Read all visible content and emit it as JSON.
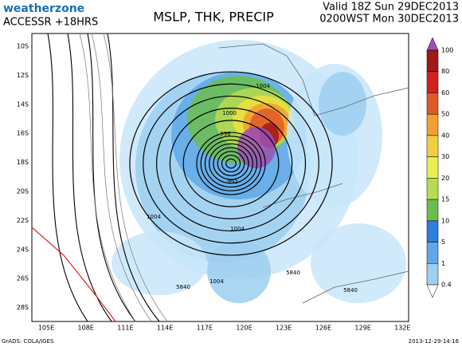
{
  "header": {
    "logo": "weatherzone",
    "model": "ACCESSR +18HRS",
    "title": "MSLP, THK, PRECIP",
    "valid_line1": "Valid 18Z Sun 29DEC2013",
    "valid_line2": "0200WST Mon 30DEC2013"
  },
  "map": {
    "lat_labels": [
      "10S",
      "12S",
      "14S",
      "16S",
      "18S",
      "20S",
      "22S",
      "24S",
      "26S",
      "28S"
    ],
    "lon_labels": [
      "105E",
      "108E",
      "111E",
      "114E",
      "117E",
      "120E",
      "123E",
      "126E",
      "129E",
      "132E"
    ],
    "contour_labels": [
      "1004",
      "1000",
      "996",
      "992",
      "1004",
      "1004",
      "1004",
      "5840",
      "5840",
      "5840"
    ]
  },
  "colorbar": {
    "labels": [
      "100",
      "80",
      "60",
      "50",
      "40",
      "30",
      "20",
      "15",
      "10",
      "5",
      "1",
      "0.4"
    ]
  },
  "footer": {
    "left": "GrADS: COLA/IGES",
    "right": "2013-12-29-14:16"
  }
}
